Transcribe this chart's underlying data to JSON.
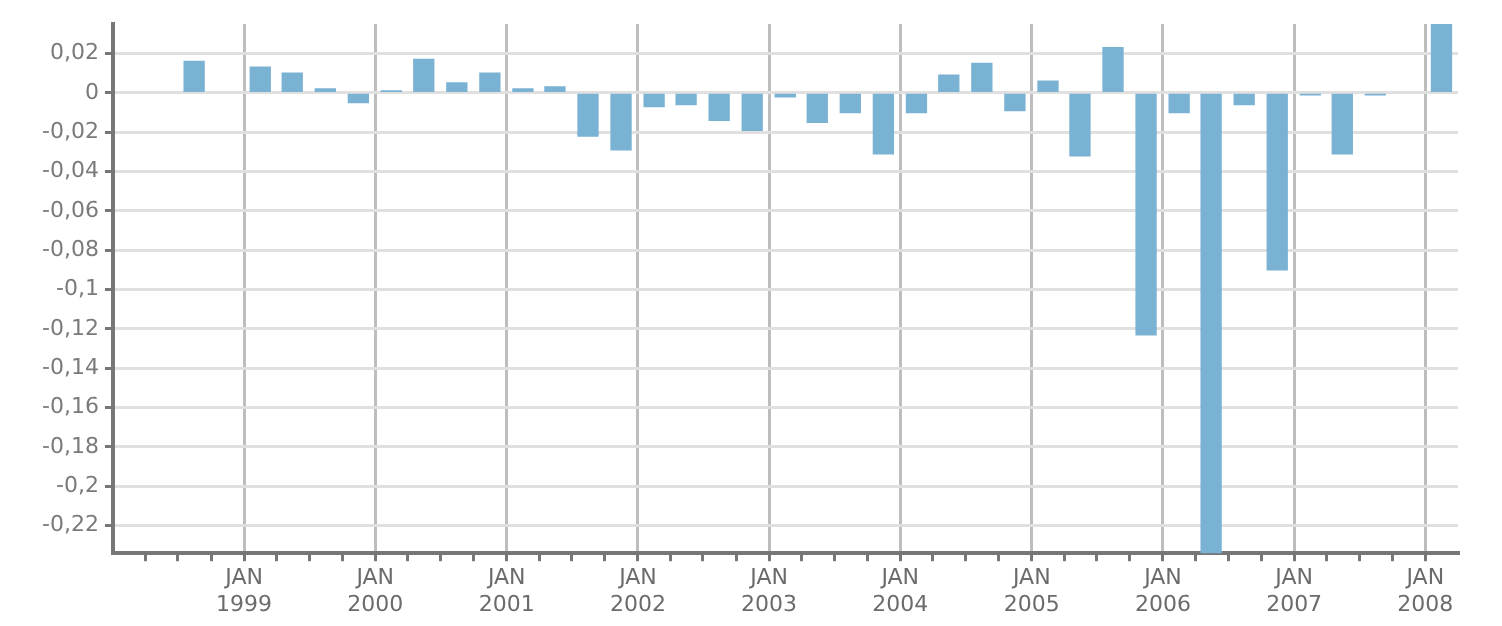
{
  "chart_data": {
    "type": "bar",
    "x": [
      "1998-08-15",
      "1999-02-15",
      "1999-05-15",
      "1999-08-15",
      "1999-11-15",
      "2000-02-15",
      "2000-05-15",
      "2000-08-15",
      "2000-11-15",
      "2001-02-15",
      "2001-05-15",
      "2001-08-15",
      "2001-11-15",
      "2002-02-15",
      "2002-05-15",
      "2002-08-15",
      "2002-11-15",
      "2003-02-15",
      "2003-05-15",
      "2003-08-15",
      "2003-11-15",
      "2004-02-15",
      "2004-05-15",
      "2004-08-15",
      "2004-11-15",
      "2005-02-15",
      "2005-05-15",
      "2005-08-15",
      "2005-11-15",
      "2006-02-15",
      "2006-05-15",
      "2006-08-15",
      "2006-11-15",
      "2007-02-15",
      "2007-05-15",
      "2007-08-15",
      "2008-02-15"
    ],
    "values": [
      0.016,
      0.013,
      0.01,
      0.002,
      -0.005,
      0.001,
      0.017,
      0.005,
      0.01,
      0.002,
      0.003,
      -0.022,
      -0.029,
      -0.007,
      -0.006,
      -0.014,
      -0.019,
      -0.002,
      -0.015,
      -0.01,
      -0.031,
      -0.01,
      0.009,
      0.015,
      -0.009,
      0.006,
      -0.032,
      0.023,
      -0.123,
      -0.01,
      -0.234,
      -0.006,
      -0.09,
      -0.001,
      -0.031,
      -0.001,
      0.035
    ],
    "color": "#7ab2d4",
    "xlim": [
      "1998-01-01",
      "2008-04-01"
    ],
    "xticks": [
      {
        "value": "1998-04-01",
        "label": null
      },
      {
        "value": "1998-07-01",
        "label": null
      },
      {
        "value": "1998-10-01",
        "label": null
      },
      {
        "value": "1999-01-01",
        "label": "JAN 1999"
      },
      {
        "value": "1999-04-01",
        "label": null
      },
      {
        "value": "1999-07-01",
        "label": null
      },
      {
        "value": "1999-10-01",
        "label": null
      },
      {
        "value": "2000-01-01",
        "label": "JAN 2000"
      },
      {
        "value": "2000-04-01",
        "label": null
      },
      {
        "value": "2000-07-01",
        "label": null
      },
      {
        "value": "2000-10-01",
        "label": null
      },
      {
        "value": "2001-01-01",
        "label": "JAN 2001"
      },
      {
        "value": "2001-04-01",
        "label": null
      },
      {
        "value": "2001-07-01",
        "label": null
      },
      {
        "value": "2001-10-01",
        "label": null
      },
      {
        "value": "2002-01-01",
        "label": "JAN 2002"
      },
      {
        "value": "2002-04-01",
        "label": null
      },
      {
        "value": "2002-07-01",
        "label": null
      },
      {
        "value": "2002-10-01",
        "label": null
      },
      {
        "value": "2003-01-01",
        "label": "JAN 2003"
      },
      {
        "value": "2003-04-01",
        "label": null
      },
      {
        "value": "2003-07-01",
        "label": null
      },
      {
        "value": "2003-10-01",
        "label": null
      },
      {
        "value": "2004-01-01",
        "label": "JAN 2004"
      },
      {
        "value": "2004-04-01",
        "label": null
      },
      {
        "value": "2004-07-01",
        "label": null
      },
      {
        "value": "2004-10-01",
        "label": null
      },
      {
        "value": "2005-01-01",
        "label": "JAN 2005"
      },
      {
        "value": "2005-04-01",
        "label": null
      },
      {
        "value": "2005-07-01",
        "label": null
      },
      {
        "value": "2005-10-01",
        "label": null
      },
      {
        "value": "2006-01-01",
        "label": "JAN 2006"
      },
      {
        "value": "2006-04-01",
        "label": null
      },
      {
        "value": "2006-07-01",
        "label": null
      },
      {
        "value": "2006-10-01",
        "label": null
      },
      {
        "value": "2007-01-01",
        "label": "JAN 2007"
      },
      {
        "value": "2007-04-01",
        "label": null
      },
      {
        "value": "2007-07-01",
        "label": null
      },
      {
        "value": "2007-10-01",
        "label": null
      },
      {
        "value": "2008-01-01",
        "label": "JAN 2008"
      }
    ],
    "ylim": [
      -0.234,
      0.035
    ],
    "yticks": [
      {
        "value": 0.02,
        "label": "0,02"
      },
      0,
      {
        "value": -0.02,
        "label": "-0,02"
      },
      {
        "value": -0.04,
        "label": "-0,04"
      },
      {
        "value": -0.06,
        "label": "-0,06"
      },
      {
        "value": -0.08,
        "label": "-0,08"
      },
      {
        "value": -0.1,
        "label": "-0,1"
      },
      {
        "value": -0.12,
        "label": "-0,12"
      },
      {
        "value": -0.14,
        "label": "-0,14"
      },
      {
        "value": -0.16,
        "label": "-0,16"
      },
      {
        "value": -0.18,
        "label": "-0,18"
      },
      {
        "value": -0.2,
        "label": "-0,2"
      },
      {
        "value": -0.22,
        "label": "-0,22"
      }
    ],
    "grid": true
  }
}
